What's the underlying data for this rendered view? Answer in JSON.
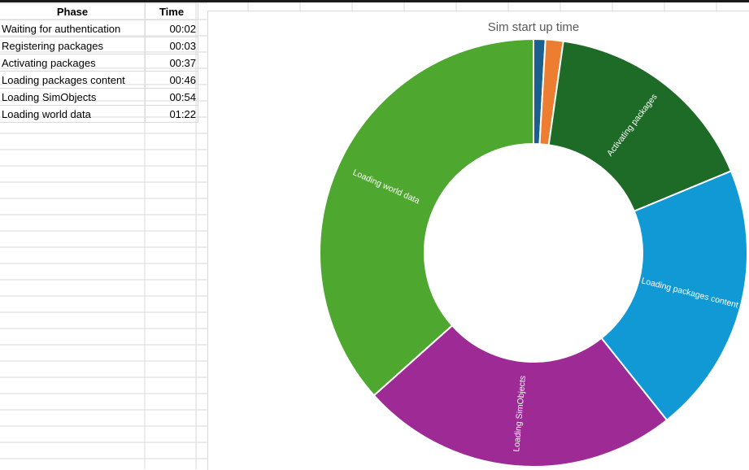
{
  "sheet": {
    "headers": {
      "phase": "Phase",
      "time": "Time"
    },
    "rows": [
      {
        "phase": "Waiting for authentication",
        "time": "00:02"
      },
      {
        "phase": "Registering packages",
        "time": "00:03"
      },
      {
        "phase": "Activating packages",
        "time": "00:37"
      },
      {
        "phase": "Loading packages content",
        "time": "00:46"
      },
      {
        "phase": "Loading SimObjects",
        "time": "00:54"
      },
      {
        "phase": "Loading world data",
        "time": "01:22"
      }
    ]
  },
  "chart_data": {
    "type": "pie",
    "variant": "doughnut",
    "title": "Sim start up time",
    "categories": [
      "Waiting for authentication",
      "Registering packages",
      "Activating packages",
      "Loading packages content",
      "Loading SimObjects",
      "Loading world data"
    ],
    "values": [
      2,
      3,
      37,
      46,
      54,
      82
    ],
    "unit": "seconds",
    "colors": [
      "#1a5f8f",
      "#ed7d31",
      "#1e6b27",
      "#1199d6",
      "#9e2a96",
      "#4ea72e"
    ],
    "segment_labels": [
      "",
      "",
      "Activating packages",
      "Loading packages content",
      "Loading SimObjects",
      "Loading world data"
    ],
    "legend": "none"
  }
}
